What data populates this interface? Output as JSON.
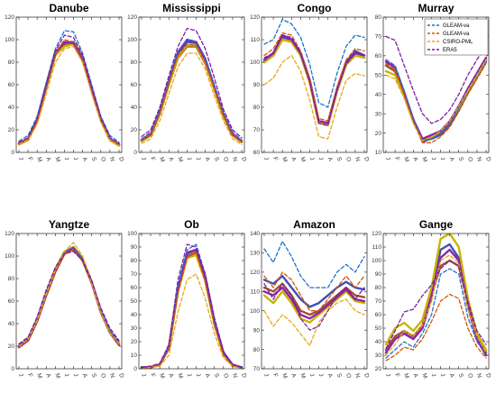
{
  "chart_data": {
    "type": "line",
    "months": [
      "J",
      "F",
      "M",
      "A",
      "M",
      "J",
      "J",
      "A",
      "S",
      "O",
      "N",
      "D"
    ],
    "legend": {
      "placement": "inside-top-right of Murray panel",
      "entries": [
        "GLEAM-va",
        "GLEAM-va",
        "CSIRO-PML",
        "ERA5"
      ]
    },
    "series_styles": [
      {
        "color": "#1f6fd1",
        "dash": true
      },
      {
        "color": "#d35400",
        "dash": true
      },
      {
        "color": "#e6a817",
        "dash": true
      },
      {
        "color": "#7b1fa2",
        "dash": true
      },
      {
        "color": "#3f51b5",
        "dash": false
      },
      {
        "color": "#a0522d",
        "dash": false
      },
      {
        "color": "#c8b400",
        "dash": false
      },
      {
        "color": "#8e24aa",
        "dash": false
      }
    ],
    "panels": [
      {
        "title": "Danube",
        "ylim": [
          0,
          120
        ],
        "yticks": [
          0,
          20,
          40,
          60,
          80,
          100,
          120
        ],
        "series": [
          [
            10,
            15,
            32,
            62,
            92,
            108,
            107,
            88,
            60,
            32,
            15,
            9
          ],
          [
            8,
            12,
            28,
            58,
            88,
            100,
            98,
            84,
            57,
            30,
            12,
            7
          ],
          [
            7,
            11,
            25,
            52,
            80,
            92,
            94,
            80,
            52,
            27,
            11,
            6
          ],
          [
            9,
            13,
            30,
            60,
            90,
            104,
            102,
            86,
            58,
            31,
            13,
            8
          ],
          [
            8,
            12,
            29,
            60,
            89,
            97,
            98,
            84,
            57,
            30,
            12,
            7
          ],
          [
            7,
            11,
            28,
            58,
            87,
            95,
            96,
            82,
            55,
            29,
            11,
            6
          ],
          [
            7,
            11,
            27,
            57,
            86,
            94,
            96,
            81,
            55,
            28,
            11,
            6
          ],
          [
            8,
            12,
            29,
            59,
            88,
            98,
            97,
            83,
            56,
            30,
            12,
            7
          ]
        ]
      },
      {
        "title": "Mississippi",
        "ylim": [
          0,
          120
        ],
        "yticks": [
          0,
          20,
          40,
          60,
          80,
          100,
          120
        ],
        "series": [
          [
            12,
            18,
            38,
            65,
            90,
            100,
            98,
            84,
            60,
            35,
            18,
            11
          ],
          [
            11,
            16,
            35,
            62,
            86,
            96,
            95,
            80,
            57,
            33,
            16,
            10
          ],
          [
            8,
            12,
            28,
            52,
            76,
            88,
            88,
            74,
            50,
            28,
            12,
            7
          ],
          [
            14,
            20,
            40,
            68,
            94,
            110,
            108,
            92,
            66,
            38,
            20,
            13
          ],
          [
            11,
            16,
            36,
            63,
            88,
            98,
            97,
            82,
            58,
            33,
            16,
            10
          ],
          [
            10,
            15,
            34,
            60,
            84,
            94,
            94,
            79,
            56,
            32,
            15,
            9
          ],
          [
            10,
            15,
            34,
            60,
            85,
            95,
            95,
            80,
            56,
            32,
            15,
            9
          ],
          [
            11,
            16,
            36,
            63,
            89,
            100,
            98,
            83,
            58,
            34,
            16,
            10
          ]
        ]
      },
      {
        "title": "Congo",
        "ylim": [
          60,
          120
        ],
        "yticks": [
          60,
          70,
          80,
          90,
          100,
          110,
          120
        ],
        "series": [
          [
            108,
            110,
            119,
            117,
            111,
            99,
            82,
            80,
            95,
            107,
            112,
            111
          ],
          [
            103,
            106,
            113,
            112,
            105,
            93,
            75,
            74,
            89,
            101,
            106,
            105
          ],
          [
            90,
            93,
            100,
            103,
            96,
            83,
            67,
            66,
            80,
            92,
            95,
            94
          ],
          [
            102,
            104,
            112,
            111,
            104,
            91,
            73,
            72,
            88,
            99,
            104,
            103
          ],
          [
            101,
            104,
            111,
            110,
            104,
            92,
            74,
            73,
            88,
            100,
            105,
            103
          ],
          [
            100,
            103,
            110,
            109,
            103,
            91,
            73,
            72,
            87,
            99,
            103,
            102
          ],
          [
            100,
            103,
            110,
            109,
            103,
            91,
            73,
            72,
            87,
            99,
            103,
            102
          ],
          [
            101,
            104,
            112,
            110,
            104,
            92,
            74,
            73,
            88,
            100,
            104,
            103
          ]
        ]
      },
      {
        "title": "Murray",
        "ylim": [
          10,
          80
        ],
        "yticks": [
          10,
          20,
          30,
          40,
          50,
          60,
          70,
          80
        ],
        "series": [
          [
            58,
            55,
            42,
            28,
            15,
            17,
            20,
            25,
            33,
            42,
            50,
            58
          ],
          [
            56,
            53,
            40,
            26,
            15,
            15,
            18,
            23,
            31,
            40,
            48,
            56
          ],
          [
            50,
            48,
            38,
            25,
            16,
            18,
            21,
            26,
            34,
            42,
            50,
            58
          ],
          [
            70,
            68,
            55,
            42,
            30,
            25,
            27,
            32,
            40,
            50,
            58,
            65
          ],
          [
            55,
            52,
            40,
            26,
            16,
            17,
            19,
            24,
            32,
            41,
            49,
            57
          ],
          [
            55,
            52,
            40,
            27,
            17,
            18,
            20,
            25,
            33,
            42,
            50,
            58
          ],
          [
            52,
            50,
            39,
            26,
            17,
            18,
            21,
            26,
            33,
            42,
            50,
            58
          ],
          [
            57,
            54,
            41,
            27,
            17,
            19,
            21,
            26,
            34,
            43,
            51,
            59
          ]
        ]
      },
      {
        "title": "Yangtze",
        "ylim": [
          0,
          120
        ],
        "yticks": [
          0,
          20,
          40,
          60,
          80,
          100,
          120
        ],
        "series": [
          [
            22,
            28,
            45,
            68,
            88,
            104,
            108,
            98,
            78,
            52,
            34,
            24
          ],
          [
            20,
            26,
            42,
            65,
            86,
            102,
            106,
            96,
            76,
            50,
            32,
            22
          ],
          [
            20,
            26,
            43,
            66,
            88,
            104,
            112,
            100,
            76,
            50,
            32,
            22
          ],
          [
            22,
            28,
            46,
            70,
            90,
            102,
            104,
            96,
            78,
            54,
            36,
            25
          ],
          [
            20,
            26,
            43,
            66,
            87,
            103,
            107,
            97,
            77,
            51,
            33,
            22
          ],
          [
            19,
            25,
            42,
            65,
            86,
            102,
            106,
            96,
            76,
            50,
            32,
            21
          ],
          [
            20,
            26,
            44,
            67,
            89,
            104,
            108,
            98,
            77,
            51,
            33,
            22
          ],
          [
            20,
            26,
            43,
            66,
            87,
            103,
            107,
            97,
            77,
            51,
            33,
            22
          ]
        ]
      },
      {
        "title": "Ob",
        "ylim": [
          0,
          100
        ],
        "yticks": [
          0,
          10,
          20,
          30,
          40,
          50,
          60,
          70,
          80,
          90,
          100
        ],
        "series": [
          [
            1,
            1,
            3,
            16,
            62,
            88,
            92,
            70,
            36,
            12,
            3,
            1
          ],
          [
            1,
            1,
            3,
            14,
            56,
            82,
            86,
            64,
            32,
            10,
            2,
            1
          ],
          [
            0,
            1,
            2,
            10,
            42,
            66,
            70,
            52,
            26,
            8,
            2,
            0
          ],
          [
            1,
            2,
            4,
            18,
            66,
            92,
            90,
            70,
            38,
            13,
            3,
            1
          ],
          [
            1,
            1,
            3,
            16,
            60,
            85,
            88,
            68,
            35,
            11,
            3,
            1
          ],
          [
            1,
            1,
            3,
            15,
            58,
            83,
            86,
            66,
            34,
            11,
            2,
            1
          ],
          [
            1,
            1,
            3,
            15,
            57,
            82,
            84,
            65,
            33,
            11,
            2,
            1
          ],
          [
            1,
            1,
            3,
            16,
            60,
            86,
            88,
            68,
            35,
            12,
            3,
            1
          ]
        ]
      },
      {
        "title": "Amazon",
        "ylim": [
          70,
          140
        ],
        "yticks": [
          70,
          80,
          90,
          100,
          110,
          120,
          130,
          140
        ],
        "series": [
          [
            132,
            125,
            136,
            128,
            118,
            112,
            112,
            112,
            120,
            124,
            120,
            128
          ],
          [
            118,
            112,
            120,
            116,
            108,
            100,
            100,
            106,
            112,
            118,
            112,
            118
          ],
          [
            100,
            92,
            98,
            94,
            88,
            82,
            94,
            100,
            104,
            106,
            100,
            98
          ],
          [
            114,
            106,
            114,
            108,
            96,
            90,
            92,
            100,
            108,
            112,
            106,
            112
          ],
          [
            116,
            114,
            118,
            112,
            106,
            102,
            104,
            108,
            112,
            115,
            112,
            111
          ],
          [
            112,
            110,
            114,
            108,
            100,
            98,
            100,
            104,
            108,
            112,
            108,
            107
          ],
          [
            108,
            104,
            110,
            104,
            96,
            94,
            98,
            102,
            106,
            110,
            105,
            104
          ],
          [
            110,
            108,
            112,
            106,
            98,
            96,
            99,
            103,
            107,
            111,
            106,
            105
          ]
        ]
      },
      {
        "title": "Gange",
        "ylim": [
          20,
          120
        ],
        "yticks": [
          20,
          30,
          40,
          50,
          60,
          70,
          80,
          90,
          100,
          110,
          120
        ],
        "series": [
          [
            28,
            34,
            40,
            36,
            46,
            60,
            90,
            94,
            90,
            58,
            40,
            30
          ],
          [
            26,
            30,
            36,
            34,
            42,
            55,
            70,
            75,
            72,
            50,
            36,
            28
          ],
          [
            30,
            38,
            48,
            44,
            52,
            70,
            100,
            104,
            98,
            64,
            44,
            32
          ],
          [
            35,
            48,
            62,
            64,
            74,
            82,
            94,
            100,
            96,
            70,
            48,
            38
          ],
          [
            32,
            42,
            46,
            42,
            50,
            72,
            108,
            112,
            102,
            66,
            42,
            30
          ],
          [
            34,
            44,
            48,
            44,
            52,
            74,
            96,
            100,
            96,
            68,
            44,
            32
          ],
          [
            38,
            50,
            54,
            48,
            56,
            80,
            116,
            120,
            110,
            72,
            46,
            34
          ],
          [
            32,
            42,
            46,
            42,
            50,
            74,
            102,
            108,
            100,
            66,
            42,
            30
          ]
        ]
      }
    ]
  }
}
